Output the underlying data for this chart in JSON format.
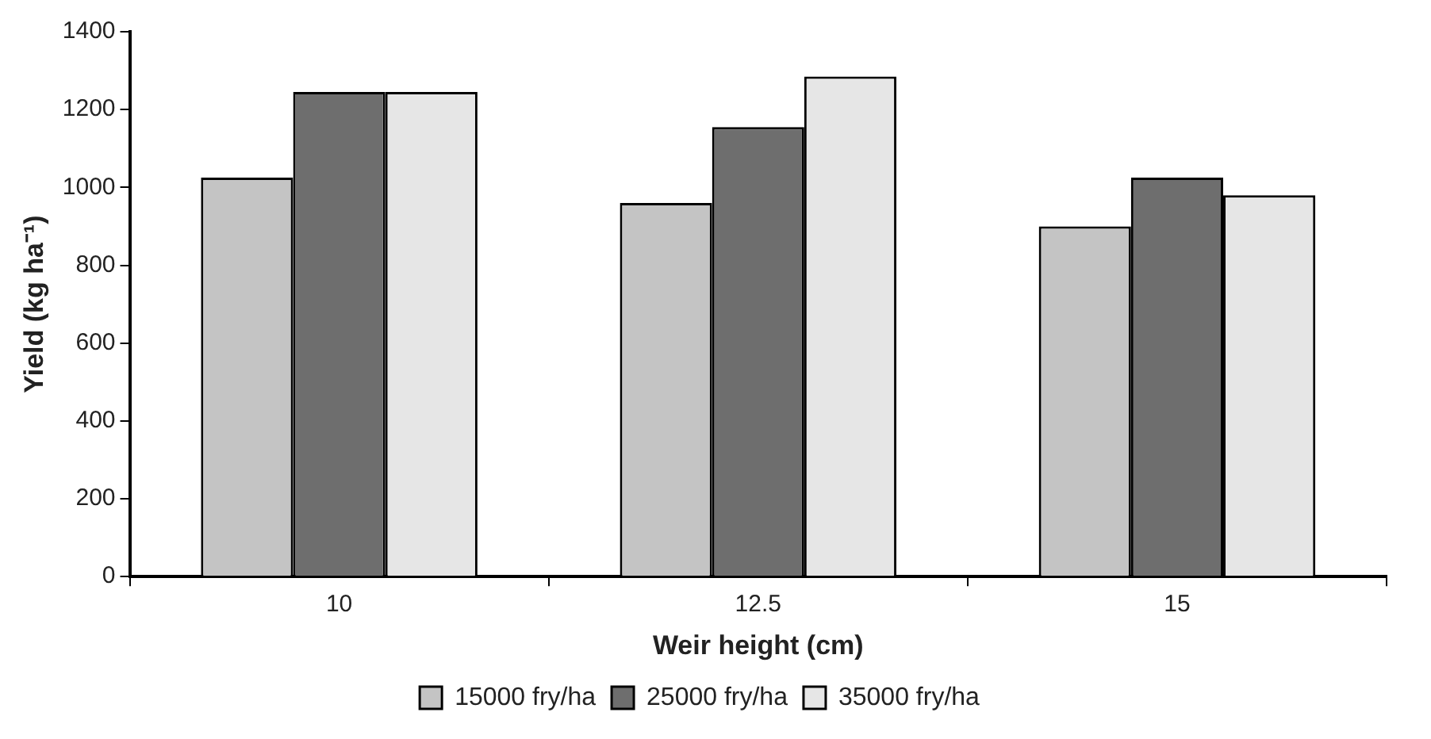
{
  "chart_data": {
    "type": "bar",
    "xlabel": "Weir height (cm)",
    "ylabel": "Yield (kg ha⁻¹)",
    "categories": [
      "10",
      "12.5",
      "15"
    ],
    "series": [
      {
        "name": "15000 fry/ha",
        "color": "#c4c4c4",
        "values": [
          1025,
          960,
          900
        ]
      },
      {
        "name": "25000 fry/ha",
        "color": "#6e6e6e",
        "values": [
          1245,
          1155,
          1025
        ]
      },
      {
        "name": "35000 fry/ha",
        "color": "#e6e6e6",
        "values": [
          1245,
          1285,
          980
        ]
      }
    ],
    "ylim": [
      0,
      1400
    ],
    "yticks": [
      0,
      200,
      400,
      600,
      800,
      1000,
      1200,
      1400
    ],
    "grid": false,
    "legend": "bottom"
  }
}
